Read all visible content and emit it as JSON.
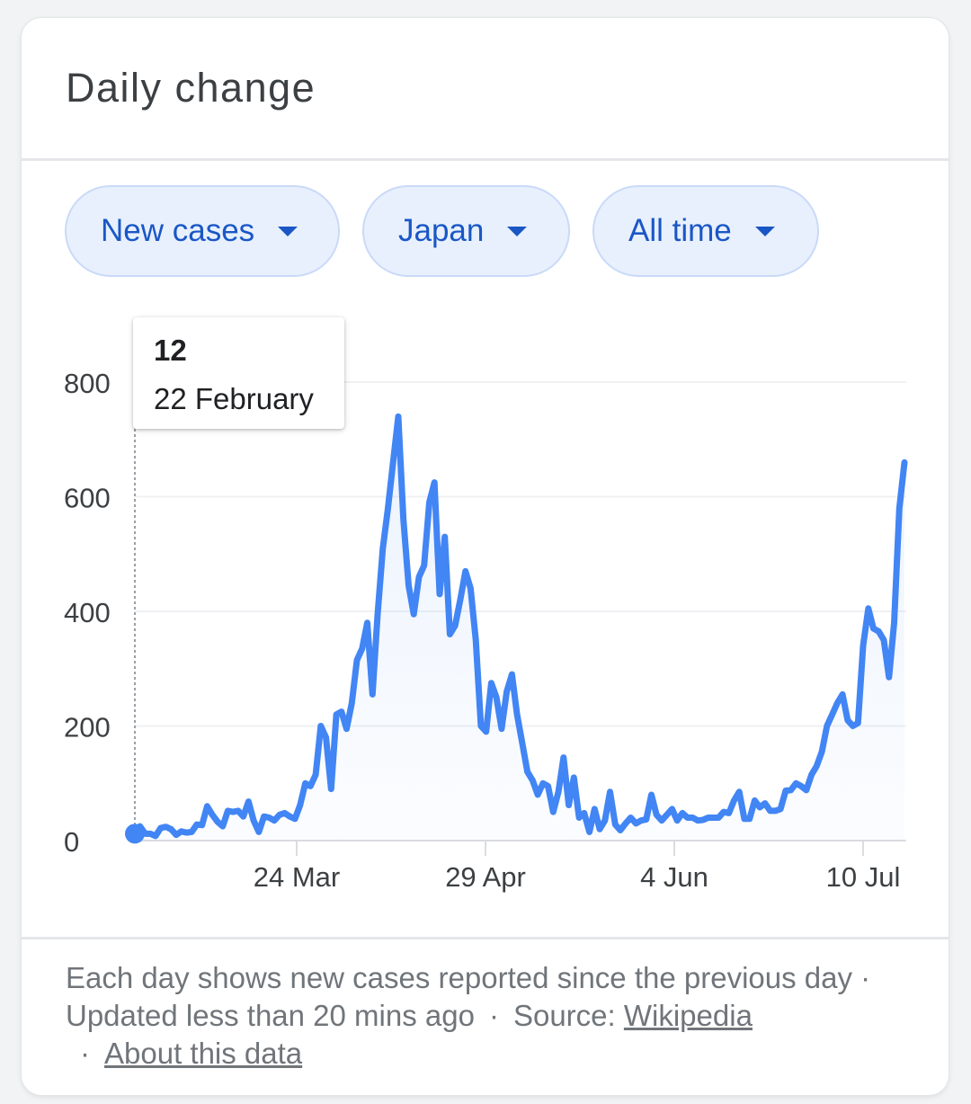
{
  "card": {
    "title": "Daily change"
  },
  "filters": [
    {
      "label": "New cases"
    },
    {
      "label": "Japan"
    },
    {
      "label": "All time"
    }
  ],
  "tooltip": {
    "value": "12",
    "date": "22 February"
  },
  "colors": {
    "line": "#4285f4",
    "chip_text": "#1a57c5",
    "chip_bg": "#e8f0fe"
  },
  "chart_data": {
    "type": "line",
    "title": "",
    "xlabel": "",
    "ylabel": "",
    "x_ticks": [
      "24 Mar",
      "29 Apr",
      "4 Jun",
      "10 Jul"
    ],
    "y_ticks": [
      0,
      200,
      400,
      600,
      800
    ],
    "ylim": [
      0,
      800
    ],
    "grid": true,
    "series": [
      {
        "values": [
          12,
          25,
          12,
          12,
          8,
          22,
          24,
          20,
          10,
          16,
          14,
          15,
          28,
          27,
          60,
          45,
          33,
          25,
          52,
          50,
          52,
          42,
          68,
          35,
          15,
          42,
          40,
          35,
          45,
          48,
          42,
          38,
          62,
          100,
          95,
          115,
          200,
          180,
          90,
          220,
          225,
          195,
          240,
          315,
          335,
          380,
          255,
          395,
          510,
          580,
          660,
          740,
          560,
          445,
          395,
          460,
          480,
          590,
          625,
          430,
          530,
          360,
          375,
          420,
          470,
          440,
          350,
          200,
          190,
          275,
          250,
          195,
          260,
          290,
          220,
          170,
          120,
          105,
          80,
          100,
          95,
          50,
          85,
          145,
          62,
          110,
          40,
          48,
          15,
          55,
          20,
          35,
          85,
          28,
          18,
          30,
          40,
          30,
          35,
          37,
          80,
          45,
          35,
          45,
          55,
          35,
          48,
          40,
          40,
          35,
          36,
          40,
          40,
          40,
          50,
          48,
          70,
          85,
          38,
          38,
          70,
          58,
          65,
          52,
          52,
          55,
          87,
          88,
          100,
          95,
          88,
          115,
          130,
          155,
          200,
          220,
          240,
          255,
          210,
          200,
          205,
          340,
          405,
          370,
          365,
          350,
          285,
          380,
          580,
          660
        ]
      }
    ]
  },
  "footer": {
    "description": "Each day shows new cases reported since the previous day · Updated less than 20 mins ago",
    "source_label": "Source:",
    "source_link": "Wikipedia",
    "about_link": "About this data",
    "separator": "·"
  }
}
